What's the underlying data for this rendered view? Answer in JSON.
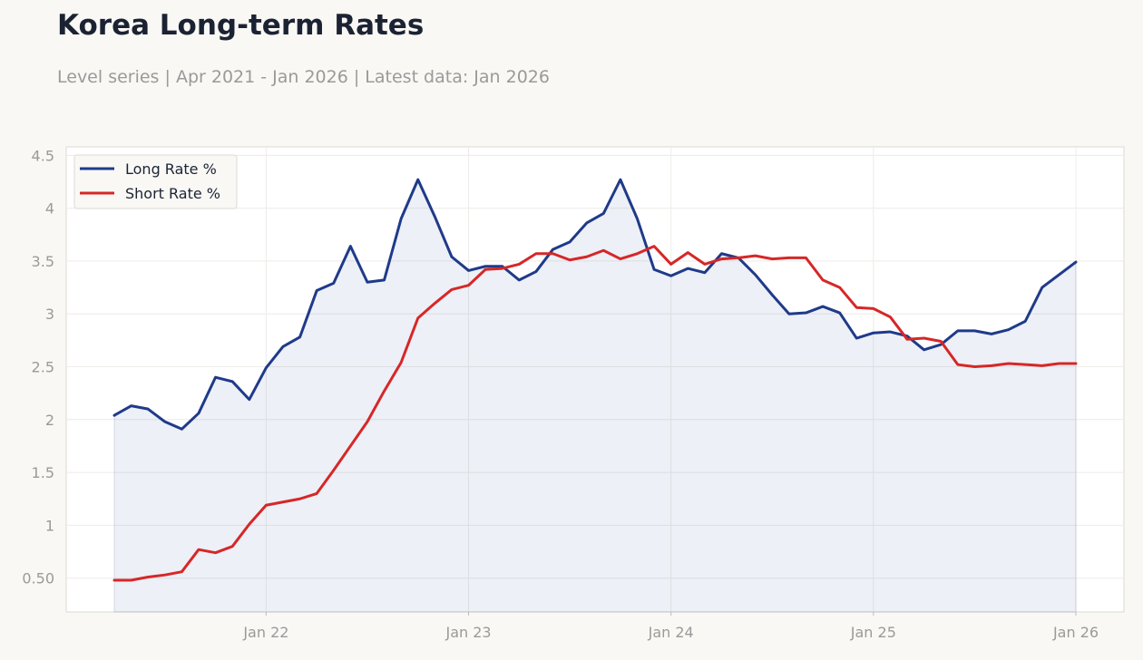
{
  "header": {
    "title": "Korea Long-term Rates",
    "subtitle": "Level series | Apr 2021 - Jan 2026 | Latest data: Jan 2026"
  },
  "chart_data": {
    "type": "line",
    "x_start": "2021-04",
    "x_end": "2026-01",
    "x_ticks": [
      {
        "label": "Jan 22",
        "date": "2022-01"
      },
      {
        "label": "Jan 23",
        "date": "2023-01"
      },
      {
        "label": "Jan 24",
        "date": "2024-01"
      },
      {
        "label": "Jan 25",
        "date": "2025-01"
      },
      {
        "label": "Jan 26",
        "date": "2026-01"
      }
    ],
    "y_ticks": [
      {
        "label": "0.50",
        "value": 0.5
      },
      {
        "label": "1",
        "value": 1
      },
      {
        "label": "1.5",
        "value": 1.5
      },
      {
        "label": "2",
        "value": 2
      },
      {
        "label": "2.5",
        "value": 2.5
      },
      {
        "label": "3",
        "value": 3
      },
      {
        "label": "3.5",
        "value": 3.5
      },
      {
        "label": "4",
        "value": 4
      },
      {
        "label": "4.5",
        "value": 4.5
      }
    ],
    "ylim": [
      0.18,
      4.58
    ],
    "grid": true,
    "legend_position": "top-left",
    "series": [
      {
        "name": "Long Rate %",
        "color": "#1f3a8a",
        "fill": true,
        "values": [
          2.04,
          2.13,
          2.1,
          1.98,
          1.91,
          2.06,
          2.4,
          2.36,
          2.19,
          2.49,
          2.69,
          2.78,
          3.22,
          3.29,
          3.64,
          3.3,
          3.32,
          3.9,
          4.27,
          3.92,
          3.54,
          3.41,
          3.45,
          3.45,
          3.32,
          3.4,
          3.61,
          3.68,
          3.86,
          3.95,
          4.27,
          3.9,
          3.42,
          3.36,
          3.43,
          3.39,
          3.57,
          3.53,
          3.37,
          3.18,
          3.0,
          3.01,
          3.07,
          3.01,
          2.77,
          2.82,
          2.83,
          2.79,
          2.66,
          2.71,
          2.84,
          2.84,
          2.81,
          2.85,
          2.93,
          3.25,
          3.37,
          3.49
        ]
      },
      {
        "name": "Short Rate %",
        "color": "#d62728",
        "fill": false,
        "values": [
          0.48,
          0.48,
          0.51,
          0.53,
          0.56,
          0.77,
          0.74,
          0.8,
          1.01,
          1.19,
          1.22,
          1.25,
          1.3,
          1.52,
          1.75,
          1.98,
          2.27,
          2.54,
          2.96,
          3.1,
          3.23,
          3.27,
          3.42,
          3.43,
          3.47,
          3.57,
          3.57,
          3.51,
          3.54,
          3.6,
          3.52,
          3.57,
          3.64,
          3.47,
          3.58,
          3.47,
          3.52,
          3.53,
          3.55,
          3.52,
          3.53,
          3.53,
          3.32,
          3.25,
          3.06,
          3.05,
          2.97,
          2.76,
          2.77,
          2.74,
          2.52,
          2.5,
          2.51,
          2.53,
          2.52,
          2.51,
          2.53,
          2.53
        ]
      }
    ]
  }
}
